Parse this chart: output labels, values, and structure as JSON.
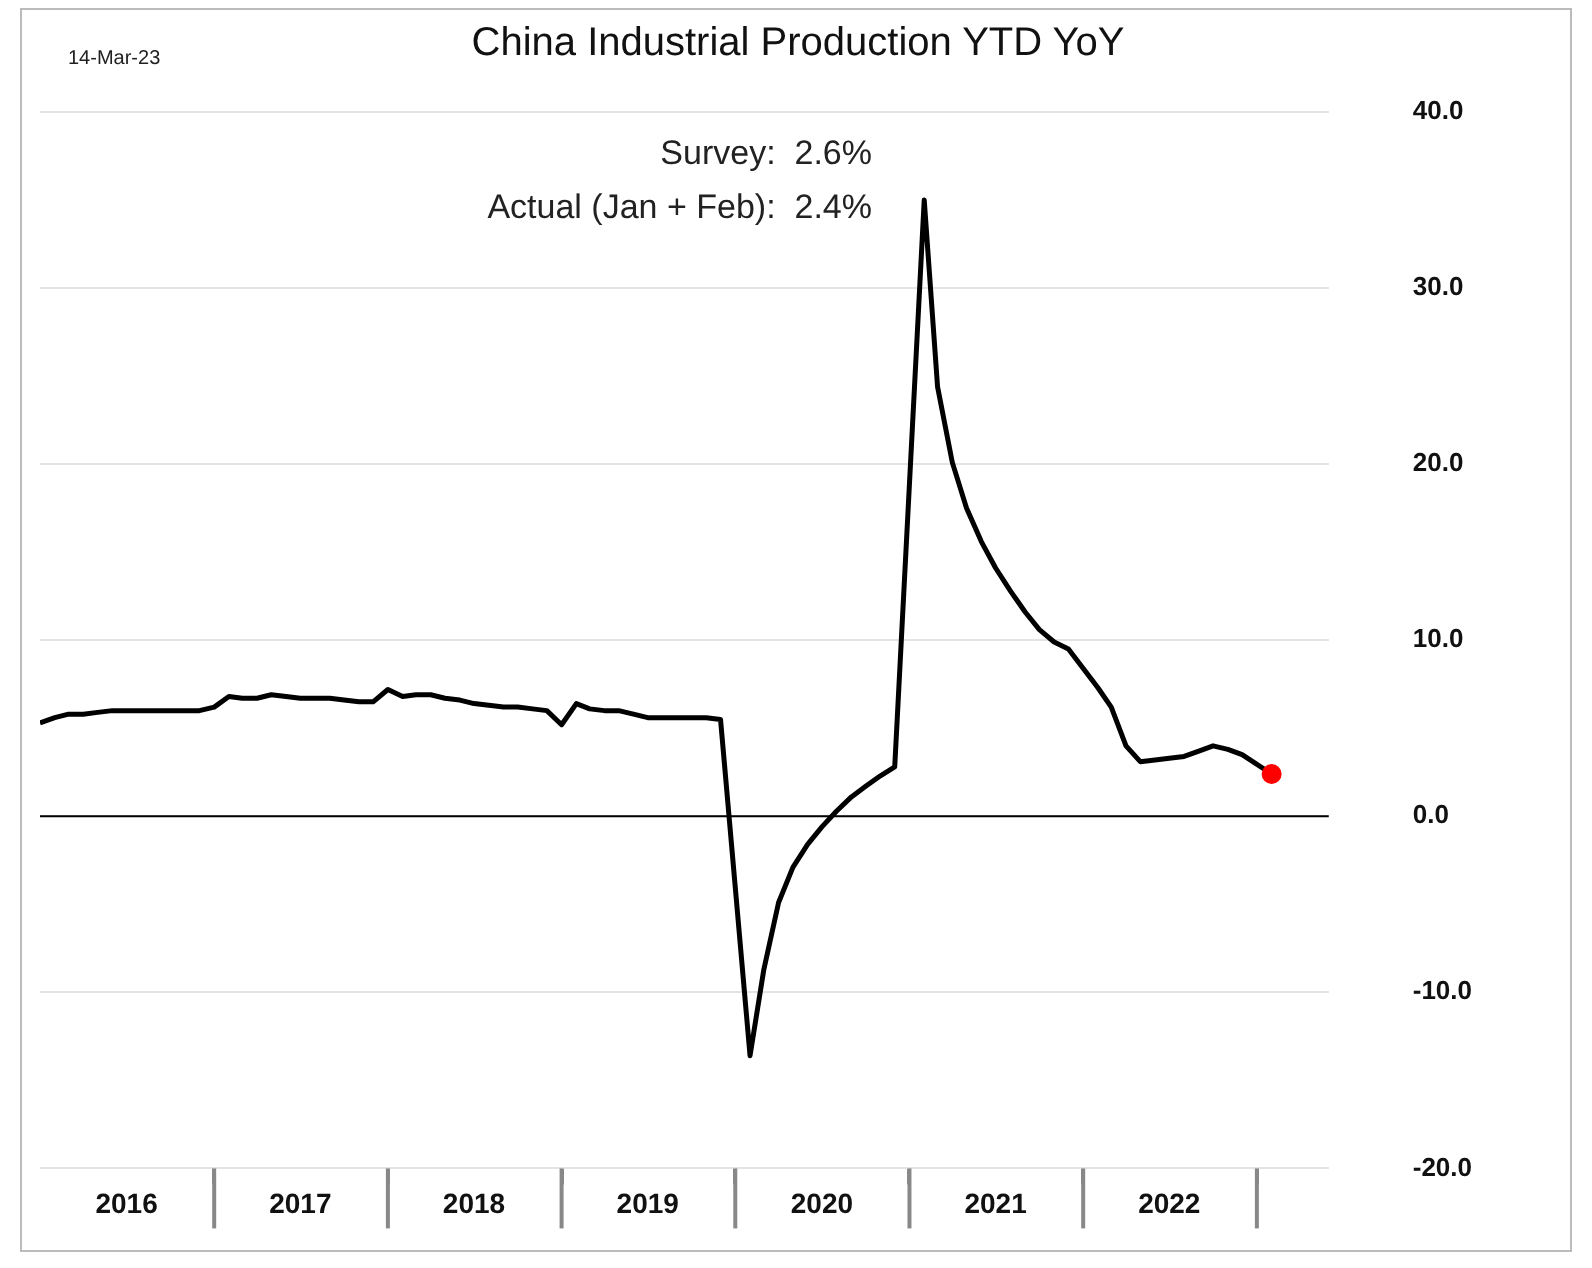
{
  "chart_data": {
    "type": "line",
    "title": "China Industrial Production YTD YoY",
    "annotations": [
      "14-Mar-23",
      "Survey:  2.6%",
      "Actual (Jan + Feb):  2.4%"
    ],
    "series": [
      {
        "color": "#000000",
        "marker": "none",
        "x": [
          "2016-01",
          "2016-02",
          "2016-03",
          "2016-04",
          "2016-05",
          "2016-06",
          "2016-07",
          "2016-08",
          "2016-09",
          "2016-10",
          "2016-11",
          "2016-12",
          "2017-01",
          "2017-02",
          "2017-03",
          "2017-04",
          "2017-05",
          "2017-06",
          "2017-07",
          "2017-08",
          "2017-09",
          "2017-10",
          "2017-11",
          "2017-12",
          "2018-01",
          "2018-02",
          "2018-03",
          "2018-04",
          "2018-05",
          "2018-06",
          "2018-07",
          "2018-08",
          "2018-09",
          "2018-10",
          "2018-11",
          "2018-12",
          "2019-01",
          "2019-02",
          "2019-03",
          "2019-04",
          "2019-05",
          "2019-06",
          "2019-07",
          "2019-08",
          "2019-09",
          "2019-10",
          "2019-11",
          "2019-12",
          "2020-02",
          "2020-03",
          "2020-04",
          "2020-05",
          "2020-06",
          "2020-07",
          "2020-08",
          "2020-09",
          "2020-10",
          "2020-11",
          "2020-12",
          "2021-02",
          "2021-03",
          "2021-04",
          "2021-05",
          "2021-06",
          "2021-07",
          "2021-08",
          "2021-09",
          "2021-10",
          "2021-11",
          "2021-12",
          "2022-02",
          "2022-03",
          "2022-04",
          "2022-05",
          "2022-06",
          "2022-07",
          "2022-08",
          "2022-09",
          "2022-10",
          "2022-11",
          "2022-12",
          "2023-02"
        ],
        "values": [
          5.3,
          5.6,
          5.8,
          5.8,
          5.9,
          6.0,
          6.0,
          6.0,
          6.0,
          6.0,
          6.0,
          6.0,
          6.2,
          6.8,
          6.7,
          6.7,
          6.9,
          6.8,
          6.7,
          6.7,
          6.7,
          6.6,
          6.5,
          6.5,
          7.2,
          6.8,
          6.9,
          6.9,
          6.7,
          6.6,
          6.4,
          6.3,
          6.2,
          6.2,
          6.1,
          6.0,
          5.2,
          6.4,
          6.1,
          6.0,
          6.0,
          5.8,
          5.6,
          5.6,
          5.6,
          5.6,
          5.6,
          5.5,
          -13.6,
          -8.7,
          -4.9,
          -2.9,
          -1.6,
          -0.6,
          0.3,
          1.1,
          1.7,
          2.3,
          2.8,
          35.0,
          24.4,
          20.1,
          17.5,
          15.6,
          14.1,
          12.8,
          11.6,
          10.6,
          9.9,
          9.5,
          7.3,
          6.2,
          4.0,
          3.1,
          3.2,
          3.3,
          3.4,
          3.7,
          4.0,
          3.8,
          3.5,
          2.4
        ]
      },
      {
        "type": "scatter",
        "color": "#ff0000",
        "marker": "circle",
        "x": [
          "2023-02"
        ],
        "values": [
          2.4
        ]
      }
    ],
    "xlim": [
      "2016-01",
      "2023-06"
    ],
    "xticks": [
      {
        "value": "2016-07",
        "label": "2016"
      },
      {
        "value": "2017-01",
        "label": null
      },
      {
        "value": "2017-07",
        "label": "2017"
      },
      {
        "value": "2018-01",
        "label": null
      },
      {
        "value": "2018-07",
        "label": "2018"
      },
      {
        "value": "2019-01",
        "label": null
      },
      {
        "value": "2019-07",
        "label": "2019"
      },
      {
        "value": "2020-01",
        "label": null
      },
      {
        "value": "2020-07",
        "label": "2020"
      },
      {
        "value": "2021-01",
        "label": null
      },
      {
        "value": "2021-07",
        "label": "2021"
      },
      {
        "value": "2022-01",
        "label": null
      },
      {
        "value": "2022-07",
        "label": "2022"
      },
      {
        "value": "2023-01",
        "label": null
      }
    ],
    "ylim": [
      -20,
      40
    ],
    "yticks": [
      {
        "value": -20,
        "label": "-20.0"
      },
      {
        "value": -10,
        "label": "-10.0"
      },
      {
        "value": 0,
        "label": "0.0"
      },
      {
        "value": 10,
        "label": "10.0"
      },
      {
        "value": 20,
        "label": "20.0"
      },
      {
        "value": 30,
        "label": "30.0"
      },
      {
        "value": 40,
        "label": "40.0"
      }
    ],
    "ref_lines": [
      {
        "axis": "y",
        "value": 0,
        "color": "#000000"
      }
    ],
    "grid": "y",
    "legend": false
  }
}
